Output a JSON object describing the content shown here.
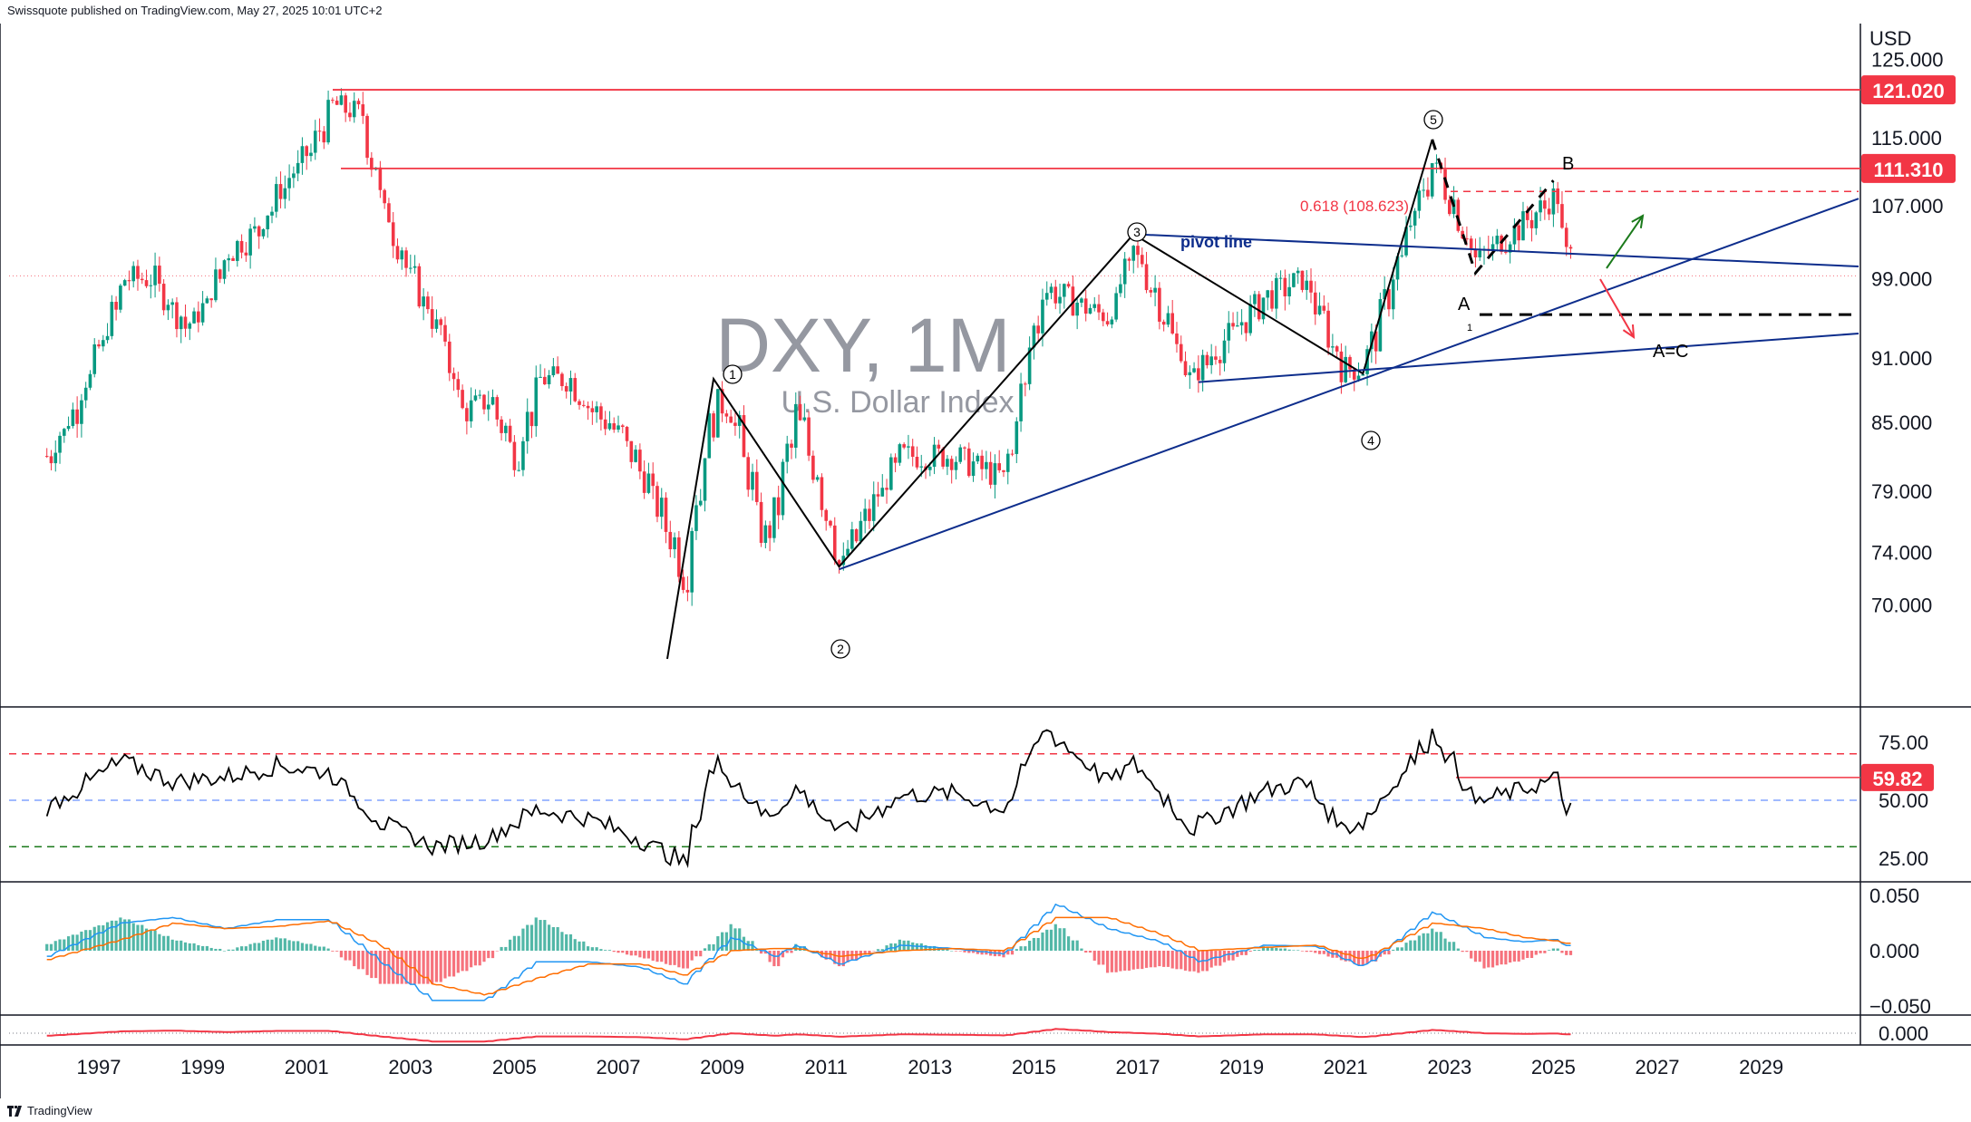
{
  "header": {
    "published_by": "Swissquote published on TradingView.com, May 27, 2025 10:01 UTC+2"
  },
  "footer": {
    "brand": "TradingView",
    "logo_icon": "tradingview-logo-icon"
  },
  "watermark": {
    "symbol": "DXY, 1M",
    "name": "U.S. Dollar Index"
  },
  "price_axis": {
    "currency": "USD",
    "ticks": [
      "125.000",
      "115.000",
      "107.000",
      "99.000",
      "91.000",
      "85.000",
      "79.000",
      "74.000",
      "70.000"
    ],
    "tick_values": [
      125,
      115,
      107,
      99,
      91,
      85,
      79,
      74,
      70
    ],
    "badges": [
      {
        "label": "121.020",
        "value": 121.02,
        "color": "#f23645"
      },
      {
        "label": "111.310",
        "value": 111.31,
        "color": "#f23645"
      }
    ]
  },
  "rsi_axis": {
    "ticks": [
      "75.00",
      "50.00",
      "25.00"
    ],
    "tick_values": [
      75,
      50,
      25
    ],
    "badge": {
      "label": "59.82",
      "value": 59.82,
      "color": "#f23645"
    }
  },
  "macd_axis": {
    "ticks": [
      "0.050",
      "0.000",
      "−0.050"
    ],
    "tick_values": [
      0.05,
      0,
      -0.05
    ]
  },
  "osc_axis": {
    "ticks": [
      "0.000"
    ],
    "tick_values": [
      0
    ]
  },
  "time_axis": {
    "labels": [
      "1997",
      "1999",
      "2001",
      "2003",
      "2005",
      "2007",
      "2009",
      "2011",
      "2013",
      "2015",
      "2017",
      "2019",
      "2021",
      "2023",
      "2025",
      "2027",
      "2029"
    ]
  },
  "annotations": {
    "wave_labels": [
      "1",
      "2",
      "3",
      "4",
      "5"
    ],
    "corrective_labels": [
      "A",
      "B"
    ],
    "small_label": "1",
    "ac_label": "A=C",
    "pivot_label": "pivot line",
    "fib_label": "0.618 (108.623)"
  },
  "colors": {
    "up_candle": "#089981",
    "down_candle": "#f23645",
    "resistance": "#f23645",
    "trendline": "#0d2d8c",
    "wave_line": "#000000",
    "rsi_line": "#000000",
    "rsi_upper": "#f23645",
    "rsi_mid": "#2962ff",
    "rsi_lower": "#1b7a1b",
    "macd_line": "#2196f3",
    "signal_line": "#ff6d00",
    "green_arrow": "#1b7a1b",
    "red_arrow": "#f23645"
  },
  "chart_data": {
    "type": "candlestick",
    "symbol": "DXY",
    "interval": "1M",
    "y_scale": "log",
    "ylim": [
      67,
      128
    ],
    "resistance_levels": [
      121.02,
      111.31
    ],
    "fib_level": 108.623,
    "ac_target": 95.3,
    "current_price": 99.3,
    "wave_points": [
      {
        "label": "1",
        "date": "2008-11",
        "price": 89
      },
      {
        "label": "2",
        "date": "2011-04",
        "price": 72.9
      },
      {
        "label": "3",
        "date": "2016-12",
        "price": 103.8
      },
      {
        "label": "4",
        "date": "2021-05",
        "price": 89.5
      },
      {
        "label": "5",
        "date": "2022-09",
        "price": 114.8
      },
      {
        "label": "A",
        "date": "2023-07",
        "price": 99.6
      },
      {
        "label": "B",
        "date": "2025-01",
        "price": 109.9
      }
    ],
    "monthly_close": [
      {
        "t": "1996-01",
        "v": 82
      },
      {
        "t": "1996-07",
        "v": 86
      },
      {
        "t": "1997-01",
        "v": 92
      },
      {
        "t": "1997-07",
        "v": 99
      },
      {
        "t": "1998-01",
        "v": 99
      },
      {
        "t": "1998-09",
        "v": 94
      },
      {
        "t": "1999-01",
        "v": 96
      },
      {
        "t": "1999-07",
        "v": 102
      },
      {
        "t": "2000-01",
        "v": 104
      },
      {
        "t": "2000-07",
        "v": 109
      },
      {
        "t": "2001-01",
        "v": 113
      },
      {
        "t": "2001-07",
        "v": 119
      },
      {
        "t": "2002-01",
        "v": 118
      },
      {
        "t": "2002-07",
        "v": 106
      },
      {
        "t": "2003-01",
        "v": 99
      },
      {
        "t": "2003-07",
        "v": 94
      },
      {
        "t": "2004-01",
        "v": 86
      },
      {
        "t": "2004-07",
        "v": 87
      },
      {
        "t": "2005-01",
        "v": 82
      },
      {
        "t": "2005-07",
        "v": 89
      },
      {
        "t": "2006-01",
        "v": 89
      },
      {
        "t": "2006-07",
        "v": 86
      },
      {
        "t": "2007-01",
        "v": 84
      },
      {
        "t": "2007-07",
        "v": 80
      },
      {
        "t": "2008-01",
        "v": 75
      },
      {
        "t": "2008-04",
        "v": 72
      },
      {
        "t": "2008-11",
        "v": 87
      },
      {
        "t": "2009-03",
        "v": 86
      },
      {
        "t": "2009-11",
        "v": 74
      },
      {
        "t": "2010-06",
        "v": 86
      },
      {
        "t": "2011-04",
        "v": 73
      },
      {
        "t": "2012-06",
        "v": 82
      },
      {
        "t": "2013-06",
        "v": 82
      },
      {
        "t": "2014-06",
        "v": 80
      },
      {
        "t": "2015-03",
        "v": 98
      },
      {
        "t": "2016-06",
        "v": 95
      },
      {
        "t": "2016-12",
        "v": 102
      },
      {
        "t": "2018-01",
        "v": 89
      },
      {
        "t": "2019-06",
        "v": 97
      },
      {
        "t": "2020-03",
        "v": 99
      },
      {
        "t": "2020-12",
        "v": 90
      },
      {
        "t": "2021-05",
        "v": 90
      },
      {
        "t": "2022-09",
        "v": 112
      },
      {
        "t": "2023-07",
        "v": 101
      },
      {
        "t": "2024-06",
        "v": 105
      },
      {
        "t": "2025-01",
        "v": 108
      },
      {
        "t": "2025-05",
        "v": 99.3
      }
    ],
    "rsi": {
      "levels": [
        70,
        50,
        30
      ],
      "points": [
        {
          "t": "1996-01",
          "v": 47
        },
        {
          "t": "1997-06",
          "v": 67
        },
        {
          "t": "1998-06",
          "v": 58
        },
        {
          "t": "1999-06",
          "v": 60
        },
        {
          "t": "2000-06",
          "v": 65
        },
        {
          "t": "2001-06",
          "v": 62
        },
        {
          "t": "2002-06",
          "v": 40
        },
        {
          "t": "2003-06",
          "v": 30
        },
        {
          "t": "2004-06",
          "v": 33
        },
        {
          "t": "2005-06",
          "v": 46
        },
        {
          "t": "2006-06",
          "v": 42
        },
        {
          "t": "2007-06",
          "v": 33
        },
        {
          "t": "2008-04",
          "v": 23
        },
        {
          "t": "2008-11",
          "v": 68
        },
        {
          "t": "2009-11",
          "v": 42
        },
        {
          "t": "2010-06",
          "v": 55
        },
        {
          "t": "2011-04",
          "v": 36
        },
        {
          "t": "2012-06",
          "v": 52
        },
        {
          "t": "2013-06",
          "v": 53
        },
        {
          "t": "2014-06",
          "v": 46
        },
        {
          "t": "2015-03",
          "v": 81
        },
        {
          "t": "2016-06",
          "v": 58
        },
        {
          "t": "2016-12",
          "v": 66
        },
        {
          "t": "2018-01",
          "v": 38
        },
        {
          "t": "2019-06",
          "v": 54
        },
        {
          "t": "2020-03",
          "v": 58
        },
        {
          "t": "2020-12",
          "v": 38
        },
        {
          "t": "2021-05",
          "v": 41
        },
        {
          "t": "2022-09",
          "v": 79
        },
        {
          "t": "2023-07",
          "v": 49
        },
        {
          "t": "2024-06",
          "v": 55
        },
        {
          "t": "2025-01",
          "v": 59
        },
        {
          "t": "2025-05",
          "v": 43
        }
      ]
    },
    "macd": {
      "macd_line": [
        {
          "t": "1996-01",
          "v": -0.005
        },
        {
          "t": "1997-06",
          "v": 0.025
        },
        {
          "t": "1998-06",
          "v": 0.03
        },
        {
          "t": "1999-06",
          "v": 0.02
        },
        {
          "t": "2000-06",
          "v": 0.028
        },
        {
          "t": "2001-06",
          "v": 0.028
        },
        {
          "t": "2002-06",
          "v": -0.01
        },
        {
          "t": "2003-06",
          "v": -0.045
        },
        {
          "t": "2004-06",
          "v": -0.045
        },
        {
          "t": "2005-06",
          "v": -0.01
        },
        {
          "t": "2006-06",
          "v": -0.01
        },
        {
          "t": "2007-06",
          "v": -0.015
        },
        {
          "t": "2008-04",
          "v": -0.03
        },
        {
          "t": "2009-03",
          "v": 0.012
        },
        {
          "t": "2010-01",
          "v": -0.005
        },
        {
          "t": "2010-06",
          "v": 0.005
        },
        {
          "t": "2011-04",
          "v": -0.012
        },
        {
          "t": "2012-06",
          "v": 0.005
        },
        {
          "t": "2013-06",
          "v": 0.002
        },
        {
          "t": "2014-06",
          "v": -0.003
        },
        {
          "t": "2015-06",
          "v": 0.042
        },
        {
          "t": "2016-06",
          "v": 0.02
        },
        {
          "t": "2017-06",
          "v": 0.008
        },
        {
          "t": "2018-03",
          "v": -0.01
        },
        {
          "t": "2019-06",
          "v": 0.005
        },
        {
          "t": "2020-06",
          "v": 0.004
        },
        {
          "t": "2021-05",
          "v": -0.015
        },
        {
          "t": "2022-09",
          "v": 0.035
        },
        {
          "t": "2023-09",
          "v": 0.012
        },
        {
          "t": "2024-06",
          "v": 0.008
        },
        {
          "t": "2025-01",
          "v": 0.01
        },
        {
          "t": "2025-05",
          "v": 0.003
        }
      ],
      "signal_line": [
        {
          "t": "1996-01",
          "v": -0.008
        },
        {
          "t": "1997-06",
          "v": 0.01
        },
        {
          "t": "1998-06",
          "v": 0.025
        },
        {
          "t": "1999-06",
          "v": 0.02
        },
        {
          "t": "2000-06",
          "v": 0.022
        },
        {
          "t": "2001-06",
          "v": 0.027
        },
        {
          "t": "2002-06",
          "v": 0.005
        },
        {
          "t": "2003-06",
          "v": -0.03
        },
        {
          "t": "2004-06",
          "v": -0.04
        },
        {
          "t": "2005-06",
          "v": -0.025
        },
        {
          "t": "2006-06",
          "v": -0.012
        },
        {
          "t": "2007-06",
          "v": -0.012
        },
        {
          "t": "2008-04",
          "v": -0.022
        },
        {
          "t": "2009-03",
          "v": 0.0
        },
        {
          "t": "2010-01",
          "v": 0.002
        },
        {
          "t": "2010-06",
          "v": 0.002
        },
        {
          "t": "2011-04",
          "v": -0.005
        },
        {
          "t": "2012-06",
          "v": 0.0
        },
        {
          "t": "2013-06",
          "v": 0.002
        },
        {
          "t": "2014-06",
          "v": 0.0
        },
        {
          "t": "2015-06",
          "v": 0.03
        },
        {
          "t": "2016-06",
          "v": 0.03
        },
        {
          "t": "2017-06",
          "v": 0.015
        },
        {
          "t": "2018-03",
          "v": 0.0
        },
        {
          "t": "2019-06",
          "v": 0.003
        },
        {
          "t": "2020-06",
          "v": 0.005
        },
        {
          "t": "2021-05",
          "v": -0.008
        },
        {
          "t": "2022-09",
          "v": 0.025
        },
        {
          "t": "2023-09",
          "v": 0.02
        },
        {
          "t": "2024-06",
          "v": 0.012
        },
        {
          "t": "2025-01",
          "v": 0.009
        },
        {
          "t": "2025-05",
          "v": 0.006
        }
      ]
    }
  }
}
